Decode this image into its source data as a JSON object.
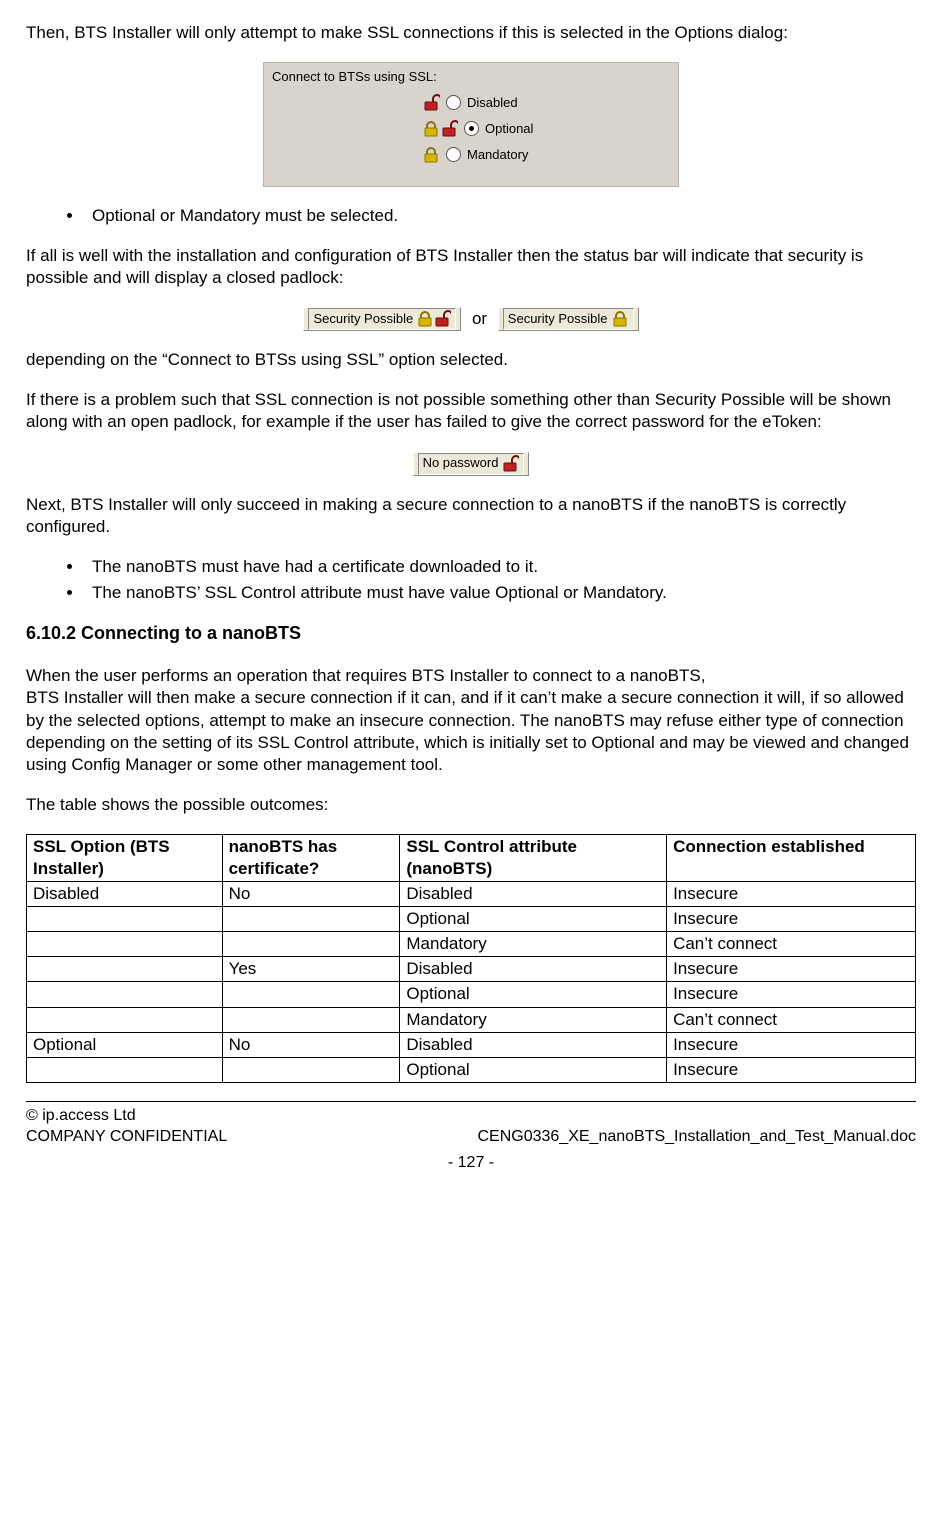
{
  "intro_para": "Then, BTS Installer will only attempt to make SSL connections if this is selected in the Options dialog:",
  "options_dialog": {
    "title": "Connect to BTSs using SSL:",
    "opt_disabled": "Disabled",
    "opt_optional": "Optional",
    "opt_mandatory": "Mandatory",
    "selected": "Optional",
    "bgcolor": "#d8d4cc"
  },
  "bullet_optional_mandatory": "Optional or Mandatory must be selected.",
  "status_ok_para": "If all is well with the installation and configuration of BTS Installer then the status bar will indicate that security is possible and will display a closed padlock:",
  "status_text": "Security Possible",
  "or_text": "or",
  "depending_para": "depending on the “Connect to BTSs using SSL” option selected.",
  "problem_para": "If there is a problem such that SSL connection is not possible something other than Security Possible will be shown along with an open padlock, for example if the user has failed to give the correct password for the eToken:",
  "no_password_text": "No password",
  "next_para": "Next, BTS Installer will only succeed in making a secure connection to a nanoBTS if the nanoBTS is correctly configured.",
  "bullet_cert": "The nanoBTS must have had a certificate downloaded to it.",
  "bullet_sslctl": "The nanoBTS’ SSL Control attribute must have value Optional or Mandatory.",
  "section_heading": "6.10.2 Connecting to a nanoBTS",
  "connecting_para1": "When the user performs an operation that requires BTS Installer to connect to a nanoBTS,",
  "connecting_para2": "BTS Installer will then make a secure connection if it can, and if it can’t make a secure connection it will, if so allowed by the selected options, attempt to make an insecure connection.  The nanoBTS may refuse either type of connection depending on the setting of its SSL Control attribute, which is initially set to Optional and may be viewed and changed using Config Manager or some other management tool.",
  "table_intro": "The table shows the possible outcomes:",
  "table": {
    "headers": [
      "SSL Option (BTS Installer)",
      "nanoBTS has certificate?",
      "SSL Control attribute (nanoBTS)",
      "Connection established"
    ],
    "rows": [
      [
        "Disabled",
        "No",
        "Disabled",
        "Insecure"
      ],
      [
        "",
        "",
        "Optional",
        "Insecure"
      ],
      [
        "",
        "",
        "Mandatory",
        "Can’t connect"
      ],
      [
        "",
        "Yes",
        "Disabled",
        "Insecure"
      ],
      [
        "",
        "",
        "Optional",
        "Insecure"
      ],
      [
        "",
        "",
        "Mandatory",
        "Can’t connect"
      ],
      [
        "Optional",
        "No",
        "Disabled",
        "Insecure"
      ],
      [
        "",
        "",
        "Optional",
        "Insecure"
      ]
    ]
  },
  "footer": {
    "copyright": "© ip.access Ltd",
    "confidential": "COMPANY CONFIDENTIAL",
    "docname": "CENG0336_XE_nanoBTS_Installation_and_Test_Manual.doc",
    "pagenum": "- 127 -"
  },
  "colors": {
    "lock_closed": "#d8b400",
    "lock_open": "#c02020",
    "statusbar_bg": "#ece9d8"
  }
}
